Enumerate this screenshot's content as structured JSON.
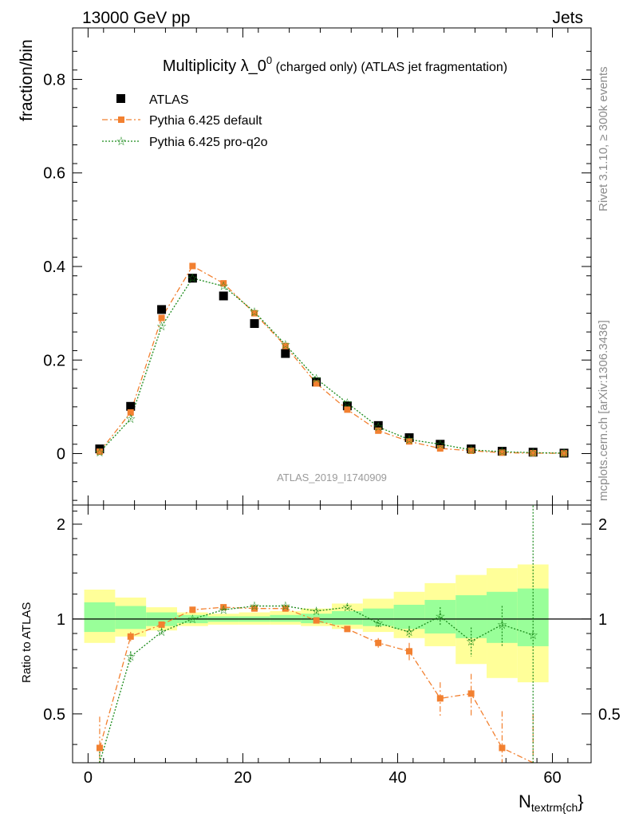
{
  "header": {
    "left": "13000 GeV pp",
    "right": "Jets",
    "side_top": "Rivet 3.1.10, ≥ 300k events",
    "side_bottom": "mcplots.cern.ch [arXiv:1306.3436]",
    "watermark": "ATLAS_2019_I1740909"
  },
  "chart_data": [
    {
      "type": "scatter",
      "title": "Multiplicity λ_0",
      "title_sup": "0",
      "title_suffix": " (charged only) (ATLAS jet fragmentation)",
      "ylabel": "fraction/bin",
      "xlim": [
        -2,
        65
      ],
      "ylim": [
        -0.11,
        0.91
      ],
      "yticks": [
        "0",
        "0.2",
        "0.4",
        "0.6",
        "0.8"
      ],
      "ytick_values": [
        0,
        0.2,
        0.4,
        0.6,
        0.8
      ],
      "legend_position": "top-left",
      "colors": {
        "data": "#000000",
        "default": "#f28030",
        "proq2o": "#1a8a1a"
      },
      "x": [
        1.5,
        5.5,
        9.5,
        13.5,
        17.5,
        21.5,
        25.5,
        29.5,
        33.5,
        37.5,
        41.5,
        45.5,
        49.5,
        53.5,
        57.5,
        61.5
      ],
      "series": [
        {
          "name": "ATLAS",
          "style": "square",
          "values": [
            0.01,
            0.101,
            0.308,
            0.375,
            0.337,
            0.278,
            0.214,
            0.153,
            0.102,
            0.06,
            0.034,
            0.02,
            0.01,
            0.005,
            0.003,
            0.001
          ]
        },
        {
          "name": "Pythia 6.425 default",
          "style": "dashdot",
          "values": [
            0.004,
            0.088,
            0.29,
            0.401,
            0.364,
            0.3,
            0.23,
            0.15,
            0.094,
            0.049,
            0.026,
            0.011,
            0.006,
            0.002,
            0.001,
            0.0005
          ]
        },
        {
          "name": "Pythia 6.425 pro-q2o",
          "style": "dotted",
          "values": [
            0.003,
            0.074,
            0.272,
            0.375,
            0.358,
            0.303,
            0.233,
            0.16,
            0.108,
            0.057,
            0.03,
            0.02,
            0.008,
            0.004,
            0.002,
            0.001
          ]
        }
      ]
    },
    {
      "type": "line",
      "ylabel": "Ratio to ATLAS",
      "xlabel": "N",
      "xlabel_sub": "textrm{ch",
      "xlabel_brace": "}",
      "xlim": [
        -2,
        65
      ],
      "ylim": [
        0.35,
        2.3
      ],
      "xticks": [
        "0",
        "20",
        "40",
        "60"
      ],
      "xtick_values": [
        0,
        20,
        40,
        60
      ],
      "yticks": [
        "0.5",
        "1",
        "2"
      ],
      "ytick_values": [
        0.5,
        1,
        2
      ],
      "bins": [
        [
          -0.5,
          3.5
        ],
        [
          3.5,
          7.5
        ],
        [
          7.5,
          11.5
        ],
        [
          11.5,
          15.5
        ],
        [
          15.5,
          19.5
        ],
        [
          19.5,
          23.5
        ],
        [
          23.5,
          27.5
        ],
        [
          27.5,
          31.5
        ],
        [
          31.5,
          35.5
        ],
        [
          35.5,
          39.5
        ],
        [
          39.5,
          43.5
        ],
        [
          43.5,
          47.5
        ],
        [
          47.5,
          51.5
        ],
        [
          51.5,
          55.5
        ],
        [
          55.5,
          59.5
        ]
      ],
      "band_yellow": [
        [
          0.84,
          1.24
        ],
        [
          0.88,
          1.17
        ],
        [
          0.92,
          1.09
        ],
        [
          0.95,
          1.05
        ],
        [
          0.96,
          1.04
        ],
        [
          0.96,
          1.05
        ],
        [
          0.96,
          1.06
        ],
        [
          0.95,
          1.08
        ],
        [
          0.93,
          1.12
        ],
        [
          0.91,
          1.16
        ],
        [
          0.87,
          1.22
        ],
        [
          0.82,
          1.3
        ],
        [
          0.72,
          1.38
        ],
        [
          0.65,
          1.45
        ],
        [
          0.63,
          1.49
        ]
      ],
      "band_green": [
        [
          0.91,
          1.13
        ],
        [
          0.93,
          1.1
        ],
        [
          0.95,
          1.05
        ],
        [
          0.97,
          1.03
        ],
        [
          0.98,
          1.02
        ],
        [
          0.98,
          1.02
        ],
        [
          0.98,
          1.03
        ],
        [
          0.97,
          1.04
        ],
        [
          0.96,
          1.06
        ],
        [
          0.95,
          1.08
        ],
        [
          0.93,
          1.11
        ],
        [
          0.9,
          1.15
        ],
        [
          0.87,
          1.19
        ],
        [
          0.84,
          1.22
        ],
        [
          0.82,
          1.25
        ]
      ],
      "series": [
        {
          "name": "Pythia 6.425 default",
          "x": [
            1.5,
            5.5,
            9.5,
            13.5,
            17.5,
            21.5,
            25.5,
            29.5,
            33.5,
            37.5,
            41.5,
            45.5,
            49.5,
            53.5,
            57.5
          ],
          "values": [
            0.39,
            0.88,
            0.96,
            1.07,
            1.09,
            1.08,
            1.08,
            0.99,
            0.93,
            0.84,
            0.79,
            0.56,
            0.58,
            0.39,
            0.3
          ],
          "err": [
            0.1,
            0.03,
            0.02,
            0.01,
            0.01,
            0.01,
            0.01,
            0.02,
            0.02,
            0.03,
            0.05,
            0.07,
            0.09,
            0.12,
            0.2
          ]
        },
        {
          "name": "Pythia 6.425 pro-q2o",
          "x": [
            1.5,
            5.5,
            9.5,
            13.5,
            17.5,
            21.5,
            25.5,
            29.5,
            33.5,
            37.5,
            41.5,
            45.5,
            49.5,
            53.5,
            57.5
          ],
          "values": [
            0.3,
            0.76,
            0.91,
            1.0,
            1.07,
            1.1,
            1.1,
            1.06,
            1.09,
            0.97,
            0.91,
            1.02,
            0.85,
            0.96,
            0.89
          ],
          "err": [
            0.08,
            0.03,
            0.02,
            0.01,
            0.01,
            0.01,
            0.01,
            0.02,
            0.02,
            0.03,
            0.04,
            0.07,
            0.09,
            0.14,
            1.4
          ]
        }
      ]
    }
  ]
}
